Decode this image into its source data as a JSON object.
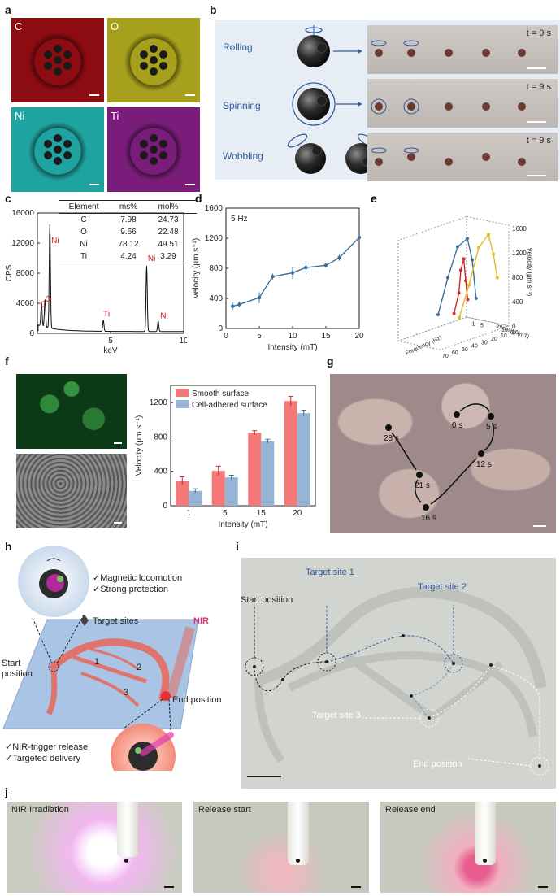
{
  "panels": {
    "a": {
      "label": "a",
      "maps": [
        {
          "element": "C",
          "color": "#8c0c12"
        },
        {
          "element": "O",
          "color": "#a6a01c"
        },
        {
          "element": "Ni",
          "color": "#1fa3a0"
        },
        {
          "element": "Ti",
          "color": "#7a1d7a"
        }
      ]
    },
    "b": {
      "label": "b",
      "modes": [
        "Rolling",
        "Spinning",
        "Wobbling"
      ],
      "time": "t = 9 s"
    },
    "c": {
      "label": "c",
      "table": {
        "headers": [
          "Element",
          "ms%",
          "mol%"
        ],
        "rows": [
          [
            "C",
            "7.98",
            "24.73"
          ],
          [
            "O",
            "9.66",
            "22.48"
          ],
          [
            "Ni",
            "78.12",
            "49.51"
          ],
          [
            "Ti",
            "4.24",
            "3.29"
          ]
        ]
      },
      "peak_labels": [
        "Ni",
        "C",
        "O",
        "Ti",
        "Ni",
        "Ni"
      ]
    },
    "d": {
      "label": "d"
    },
    "e": {
      "label": "e"
    },
    "f": {
      "label": "f"
    },
    "g": {
      "label": "g",
      "times": [
        "0 s",
        "5 s",
        "12 s",
        "16 s",
        "21 s",
        "28 s"
      ]
    },
    "h": {
      "label": "h",
      "bullets_top": [
        "✓Magnetic locomotion",
        "✓Strong protection"
      ],
      "target_sites": "Target sites",
      "nir": "NIR",
      "start": "Start position",
      "end": "End position",
      "site_nums": [
        "1",
        "2",
        "3"
      ],
      "bullets_bottom": [
        "✓NIR-trigger release",
        "✓Targeted delivery"
      ]
    },
    "i": {
      "label": "i",
      "start": "Start position",
      "site1": "Target site 1",
      "site2": "Target site 2",
      "site3": "Target site 3",
      "end": "End position"
    },
    "j": {
      "label": "j",
      "captions": [
        "NIR Irradiation",
        "Release start",
        "Release end"
      ]
    }
  },
  "chart_data": [
    {
      "id": "c",
      "type": "line",
      "xlabel": "keV",
      "ylabel": "CPS",
      "xlim": [
        0,
        10
      ],
      "ylim": [
        0,
        16000
      ],
      "xticks": [
        "5",
        "10"
      ],
      "yticks": [
        "0",
        "4000",
        "8000",
        "12000",
        "16000"
      ],
      "peaks": [
        {
          "x": 0.28,
          "y": 3100
        },
        {
          "x": 0.52,
          "y": 3700
        },
        {
          "x": 0.85,
          "y": 13800
        },
        {
          "x": 4.51,
          "y": 1500
        },
        {
          "x": 7.47,
          "y": 8700
        },
        {
          "x": 8.26,
          "y": 1400
        }
      ]
    },
    {
      "id": "d",
      "type": "line",
      "title": "5 Hz",
      "xlabel": "Intensity (mT)",
      "ylabel": "Velocity (μm s⁻¹)",
      "xlim": [
        0,
        20
      ],
      "ylim": [
        0,
        1600
      ],
      "xticks": [
        "0",
        "5",
        "10",
        "15",
        "20"
      ],
      "yticks": [
        "0",
        "400",
        "800",
        "1200",
        "1600"
      ],
      "x": [
        1,
        2,
        5,
        7,
        10,
        12,
        15,
        17,
        20
      ],
      "y": [
        295,
        320,
        410,
        690,
        740,
        810,
        840,
        940,
        1210
      ],
      "err": [
        50,
        40,
        70,
        40,
        80,
        90,
        30,
        40,
        20
      ]
    },
    {
      "id": "e",
      "type": "line",
      "xlabel": "Frequency (Hz)",
      "ylabel": "Velocity (μm s⁻¹)",
      "zlabel": "Intensity (mT)",
      "zticks": [
        "1",
        "5",
        "15",
        "20"
      ],
      "xticks": [
        "0",
        "10",
        "20",
        "30",
        "40",
        "50",
        "60",
        "70"
      ],
      "yticks": [
        "0",
        "400",
        "800",
        "1200",
        "1600"
      ],
      "series": [
        {
          "color": "#d02828",
          "freq": [
            1,
            3,
            5,
            8,
            10,
            15
          ],
          "vel": [
            300,
            620,
            990,
            820,
            460,
            150
          ]
        },
        {
          "color": "#3a6e9a",
          "freq": [
            1,
            5,
            10,
            20,
            30,
            40
          ],
          "vel": [
            350,
            1000,
            1380,
            1300,
            850,
            300
          ]
        },
        {
          "color": "#e8b820",
          "freq": [
            1,
            5,
            10,
            20,
            30,
            40
          ],
          "vel": [
            760,
            1170,
            1520,
            1360,
            800,
            320
          ]
        }
      ]
    },
    {
      "id": "f",
      "type": "bar",
      "xlabel": "Intensity (mT)",
      "ylabel": "Velocity (μm s⁻¹)",
      "ylim": [
        0,
        1400
      ],
      "yticks": [
        "0",
        "400",
        "800",
        "1200"
      ],
      "categories": [
        "1",
        "5",
        "15",
        "20"
      ],
      "series": [
        {
          "name": "Smooth surface",
          "color": "#f47878",
          "values": [
            290,
            405,
            848,
            1218
          ],
          "err": [
            45,
            55,
            25,
            55
          ]
        },
        {
          "name": "Cell-adhered surface",
          "color": "#96b4d6",
          "values": [
            172,
            330,
            748,
            1076
          ],
          "err": [
            25,
            25,
            25,
            35
          ]
        }
      ]
    }
  ]
}
